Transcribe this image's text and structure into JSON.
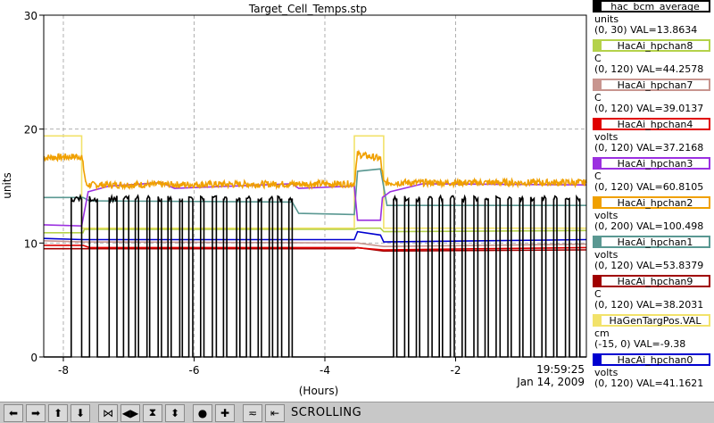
{
  "chart_data": {
    "type": "line",
    "title": "Target_Cell_Temps.stp",
    "xlabel": "(Hours)",
    "ylabel": "units",
    "xlim": [
      -8.3,
      0
    ],
    "ylim": [
      0,
      30
    ],
    "x_ticks": [
      -8,
      -6,
      -4,
      -2
    ],
    "x_tick_labels": [
      "-8",
      "-6",
      "-4",
      "-2"
    ],
    "y_ticks": [
      0,
      10,
      20,
      30
    ],
    "y_tick_labels": [
      "0",
      "10",
      "20",
      "30"
    ],
    "grid": true,
    "legend_position": "right",
    "time_label": "19:59:25",
    "date_label": "Jan 14, 2009",
    "series": [
      {
        "name": "hac_bcm_average",
        "color": "#000000",
        "kind": "bcm"
      },
      {
        "name": "HacAi_hpchan8",
        "color": "#b4d24a",
        "x": [
          -8.3,
          -7.7,
          -7.68,
          -3.55,
          -3.5,
          -3.15,
          -3.1,
          0
        ],
        "y": [
          10.9,
          10.9,
          11.2,
          11.2,
          11.3,
          11.3,
          11.0,
          11.1
        ]
      },
      {
        "name": "HacAi_hpchan7",
        "color": "#c8958f",
        "x": [
          -8.3,
          -7.7,
          -3.5,
          -3.1,
          0
        ],
        "y": [
          10.2,
          10.1,
          10.0,
          9.7,
          9.9
        ]
      },
      {
        "name": "HacAi_hpchan4",
        "color": "#e00000",
        "x": [
          -8.3,
          -7.7,
          -7.6,
          -3.55,
          -3.1,
          0
        ],
        "y": [
          9.8,
          9.8,
          9.6,
          9.6,
          9.4,
          9.6
        ]
      },
      {
        "name": "HacAi_hpchan3",
        "color": "#9b30e0",
        "x": [
          -8.3,
          -7.72,
          -7.62,
          -7.3,
          -6.5,
          -6.3,
          -4.5,
          -4.4,
          -3.55,
          -3.5,
          -3.15,
          -3.12,
          -3.0,
          -2.5,
          0
        ],
        "y": [
          11.6,
          11.5,
          14.5,
          15.0,
          15.3,
          14.8,
          15.2,
          14.8,
          15.0,
          12.0,
          12.0,
          14.0,
          14.5,
          15.2,
          15.1
        ]
      },
      {
        "name": "HacAi_hpchan2",
        "color": "#f0a000",
        "kind": "noisy",
        "x": [
          -8.3,
          -7.72,
          -7.65,
          -3.55,
          -3.5,
          -3.15,
          -3.1,
          0
        ],
        "y": [
          17.5,
          17.6,
          15.1,
          15.2,
          17.8,
          17.4,
          15.3,
          15.3
        ]
      },
      {
        "name": "HacAi_hpchan1",
        "color": "#5a9892",
        "x": [
          -8.3,
          -7.7,
          -7.6,
          -4.5,
          -4.4,
          -3.55,
          -3.5,
          -3.15,
          -3.05,
          0
        ],
        "y": [
          14.0,
          14.0,
          13.7,
          13.6,
          12.6,
          12.5,
          16.3,
          16.5,
          13.3,
          13.3
        ]
      },
      {
        "name": "HacAi_hpchan9",
        "color": "#a00000",
        "x": [
          -8.3,
          -3.55,
          -3.5,
          -3.1,
          0
        ],
        "y": [
          9.5,
          9.5,
          9.6,
          9.3,
          9.4
        ]
      },
      {
        "name": "HaGenTargPos.VAL",
        "color": "#f2e26a",
        "x": [
          -8.3,
          -7.72,
          -7.72,
          -3.55,
          -3.55,
          -3.1,
          -3.1,
          0
        ],
        "y": [
          19.4,
          19.4,
          11.3,
          11.3,
          19.4,
          19.4,
          11.3,
          11.3
        ]
      },
      {
        "name": "HacAi_hpchan0",
        "color": "#0000d0",
        "x": [
          -8.3,
          -7.7,
          -3.55,
          -3.5,
          -3.15,
          -3.1,
          0
        ],
        "y": [
          10.4,
          10.3,
          10.3,
          11.0,
          10.7,
          10.1,
          10.3
        ]
      }
    ],
    "bcm_segments": {
      "on_intervals": [
        [
          -7.88,
          -7.72
        ],
        [
          -7.6,
          -7.48
        ],
        [
          -7.3,
          -7.18
        ],
        [
          -7.08,
          -7.0
        ],
        [
          -6.9,
          -6.85
        ],
        [
          -6.72,
          -6.68
        ],
        [
          -6.55,
          -6.5
        ],
        [
          -6.4,
          -6.35
        ],
        [
          -6.22,
          -6.18
        ],
        [
          -6.08,
          -6.02
        ],
        [
          -5.9,
          -5.85
        ],
        [
          -5.72,
          -5.66
        ],
        [
          -5.55,
          -5.5
        ],
        [
          -5.35,
          -5.3
        ],
        [
          -5.2,
          -5.14
        ],
        [
          -5.02,
          -4.97
        ],
        [
          -4.85,
          -4.8
        ],
        [
          -4.72,
          -4.66
        ],
        [
          -4.55,
          -4.5
        ],
        [
          -2.95,
          -2.9
        ],
        [
          -2.78,
          -2.72
        ],
        [
          -2.6,
          -2.55
        ],
        [
          -2.42,
          -2.36
        ],
        [
          -2.25,
          -2.2
        ],
        [
          -2.08,
          -2.02
        ],
        [
          -1.9,
          -1.85
        ],
        [
          -1.72,
          -1.66
        ],
        [
          -1.55,
          -1.5
        ],
        [
          -1.38,
          -1.32
        ],
        [
          -1.2,
          -1.15
        ],
        [
          -1.02,
          -0.97
        ],
        [
          -0.85,
          -0.8
        ],
        [
          -0.68,
          -0.62
        ],
        [
          -0.5,
          -0.45
        ],
        [
          -0.32,
          -0.26
        ],
        [
          -0.15,
          -0.1
        ]
      ],
      "on_level": 13.9
    }
  },
  "legend": [
    {
      "label": "hac_bcm_average",
      "unit": "units",
      "range": "(0, 30)",
      "val": "VAL=13.8634",
      "color": "#000000"
    },
    {
      "label": "HacAi_hpchan8",
      "unit": "C",
      "range": "(0, 120)",
      "val": "VAL=44.2578",
      "color": "#b4d24a"
    },
    {
      "label": "HacAi_hpchan7",
      "unit": "C",
      "range": "(0, 120)",
      "val": "VAL=39.0137",
      "color": "#c8958f"
    },
    {
      "label": "HacAi_hpchan4",
      "unit": "volts",
      "range": "(0, 120)",
      "val": "VAL=37.2168",
      "color": "#e00000"
    },
    {
      "label": "HacAi_hpchan3",
      "unit": "C",
      "range": "(0, 120)",
      "val": "VAL=60.8105",
      "color": "#9b30e0"
    },
    {
      "label": "HacAi_hpchan2",
      "unit": "volts",
      "range": "(0, 200)",
      "val": "VAL=100.498",
      "color": "#f0a000"
    },
    {
      "label": "HacAi_hpchan1",
      "unit": "volts",
      "range": "(0, 120)",
      "val": "VAL=53.8379",
      "color": "#5a9892"
    },
    {
      "label": "HacAi_hpchan9",
      "unit": "C",
      "range": "(0, 120)",
      "val": "VAL=38.2031",
      "color": "#a00000"
    },
    {
      "label": "HaGenTargPos.VAL",
      "unit": "cm",
      "range": "(-15, 0)",
      "val": "VAL=-9.38",
      "color": "#f2e26a"
    },
    {
      "label": "HacAi_hpchan0",
      "unit": "volts",
      "range": "(0, 120)",
      "val": "VAL=41.1621",
      "color": "#0000d0"
    }
  ],
  "toolbar": {
    "status": "SCROLLING",
    "buttons": [
      {
        "icon": "arrow-left-icon",
        "glyph": "⬅"
      },
      {
        "icon": "arrow-right-icon",
        "glyph": "➡"
      },
      {
        "icon": "arrow-up-icon",
        "glyph": "⬆"
      },
      {
        "icon": "arrow-down-icon",
        "glyph": "⬇"
      },
      {
        "icon": "zoom-in-horizontal-icon",
        "glyph": "⋈"
      },
      {
        "icon": "zoom-out-horizontal-icon",
        "glyph": "◀▶"
      },
      {
        "icon": "zoom-in-vertical-icon",
        "glyph": "⧗"
      },
      {
        "icon": "zoom-out-vertical-icon",
        "glyph": "⬍"
      },
      {
        "icon": "auto-scale-icon",
        "glyph": "●"
      },
      {
        "icon": "add-icon",
        "glyph": "✚"
      },
      {
        "icon": "toggle-icon",
        "glyph": "≂"
      },
      {
        "icon": "scroll-mode-icon",
        "glyph": "⇤"
      }
    ]
  }
}
